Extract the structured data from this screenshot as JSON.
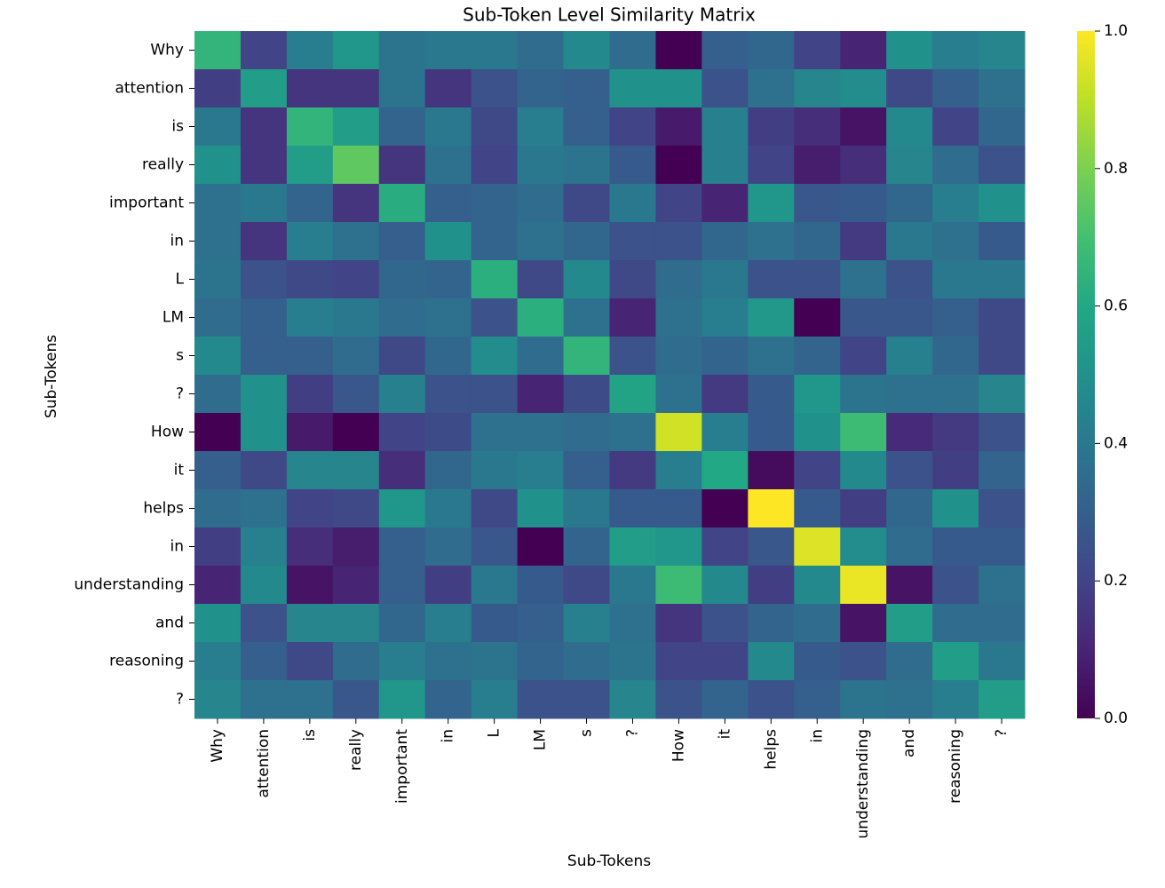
{
  "chart_data": {
    "type": "heatmap",
    "title": "Sub-Token Level Similarity Matrix",
    "xlabel": "Sub-Tokens",
    "ylabel": "Sub-Tokens",
    "colormap": "viridis",
    "x": [
      "Why",
      "attention",
      "is",
      "really",
      "important",
      "in",
      "L",
      "LM",
      "s",
      "?",
      "How",
      "it",
      "helps",
      "in",
      "understanding",
      "and",
      "reasoning",
      "?"
    ],
    "y": [
      "Why",
      "attention",
      "is",
      "really",
      "important",
      "in",
      "L",
      "LM",
      "s",
      "?",
      "How",
      "it",
      "helps",
      "in",
      "understanding",
      "and",
      "reasoning",
      "?"
    ],
    "values": [
      [
        0.65,
        0.2,
        0.42,
        0.52,
        0.38,
        0.4,
        0.4,
        0.35,
        0.47,
        0.35,
        0.0,
        0.3,
        0.33,
        0.2,
        0.1,
        0.5,
        0.42,
        0.45
      ],
      [
        0.18,
        0.55,
        0.15,
        0.15,
        0.38,
        0.15,
        0.25,
        0.32,
        0.3,
        0.5,
        0.5,
        0.25,
        0.37,
        0.45,
        0.48,
        0.22,
        0.3,
        0.37
      ],
      [
        0.4,
        0.15,
        0.65,
        0.55,
        0.32,
        0.4,
        0.22,
        0.42,
        0.3,
        0.2,
        0.07,
        0.43,
        0.18,
        0.13,
        0.05,
        0.47,
        0.2,
        0.33
      ],
      [
        0.5,
        0.15,
        0.55,
        0.75,
        0.15,
        0.37,
        0.2,
        0.4,
        0.38,
        0.28,
        0.0,
        0.43,
        0.2,
        0.08,
        0.13,
        0.45,
        0.35,
        0.25
      ],
      [
        0.37,
        0.4,
        0.32,
        0.15,
        0.62,
        0.3,
        0.32,
        0.35,
        0.22,
        0.4,
        0.2,
        0.1,
        0.52,
        0.27,
        0.28,
        0.33,
        0.42,
        0.5
      ],
      [
        0.37,
        0.15,
        0.42,
        0.37,
        0.3,
        0.5,
        0.32,
        0.37,
        0.33,
        0.25,
        0.25,
        0.33,
        0.37,
        0.33,
        0.17,
        0.4,
        0.37,
        0.28
      ],
      [
        0.38,
        0.25,
        0.22,
        0.2,
        0.33,
        0.32,
        0.63,
        0.22,
        0.47,
        0.22,
        0.35,
        0.4,
        0.25,
        0.25,
        0.37,
        0.25,
        0.4,
        0.4
      ],
      [
        0.35,
        0.3,
        0.42,
        0.4,
        0.35,
        0.37,
        0.25,
        0.63,
        0.37,
        0.1,
        0.37,
        0.42,
        0.53,
        0.0,
        0.27,
        0.27,
        0.3,
        0.22
      ],
      [
        0.47,
        0.3,
        0.3,
        0.35,
        0.22,
        0.33,
        0.48,
        0.35,
        0.65,
        0.25,
        0.35,
        0.32,
        0.37,
        0.32,
        0.2,
        0.43,
        0.33,
        0.22
      ],
      [
        0.35,
        0.5,
        0.18,
        0.27,
        0.43,
        0.25,
        0.25,
        0.1,
        0.23,
        0.58,
        0.37,
        0.17,
        0.28,
        0.52,
        0.38,
        0.37,
        0.37,
        0.45
      ],
      [
        0.0,
        0.5,
        0.07,
        0.0,
        0.2,
        0.23,
        0.37,
        0.37,
        0.35,
        0.37,
        0.93,
        0.42,
        0.28,
        0.5,
        0.68,
        0.12,
        0.17,
        0.25
      ],
      [
        0.3,
        0.22,
        0.45,
        0.45,
        0.13,
        0.33,
        0.4,
        0.42,
        0.3,
        0.17,
        0.42,
        0.6,
        0.03,
        0.2,
        0.47,
        0.25,
        0.18,
        0.32
      ],
      [
        0.35,
        0.37,
        0.2,
        0.22,
        0.52,
        0.4,
        0.22,
        0.5,
        0.4,
        0.28,
        0.28,
        0.0,
        1.0,
        0.28,
        0.18,
        0.33,
        0.5,
        0.25
      ],
      [
        0.18,
        0.43,
        0.13,
        0.08,
        0.3,
        0.35,
        0.27,
        0.0,
        0.32,
        0.55,
        0.52,
        0.2,
        0.27,
        0.95,
        0.48,
        0.35,
        0.28,
        0.28
      ],
      [
        0.1,
        0.47,
        0.05,
        0.1,
        0.3,
        0.18,
        0.4,
        0.28,
        0.22,
        0.4,
        0.68,
        0.47,
        0.18,
        0.47,
        0.97,
        0.05,
        0.25,
        0.37
      ],
      [
        0.5,
        0.25,
        0.45,
        0.45,
        0.33,
        0.42,
        0.28,
        0.3,
        0.43,
        0.37,
        0.15,
        0.25,
        0.32,
        0.35,
        0.05,
        0.55,
        0.35,
        0.35
      ],
      [
        0.42,
        0.3,
        0.22,
        0.35,
        0.42,
        0.37,
        0.38,
        0.32,
        0.35,
        0.38,
        0.2,
        0.2,
        0.47,
        0.28,
        0.25,
        0.35,
        0.55,
        0.4
      ],
      [
        0.45,
        0.37,
        0.37,
        0.27,
        0.52,
        0.32,
        0.42,
        0.25,
        0.25,
        0.45,
        0.25,
        0.32,
        0.25,
        0.3,
        0.38,
        0.37,
        0.42,
        0.55
      ]
    ],
    "zlim": [
      0,
      1
    ],
    "zticks": [
      {
        "value": 0,
        "label": "0.0"
      },
      {
        "value": 0.2,
        "label": "0.2"
      },
      {
        "value": 0.4,
        "label": "0.4"
      },
      {
        "value": 0.6,
        "label": "0.6"
      },
      {
        "value": 0.8,
        "label": "0.8"
      },
      {
        "value": 1,
        "label": "1.0"
      }
    ]
  }
}
